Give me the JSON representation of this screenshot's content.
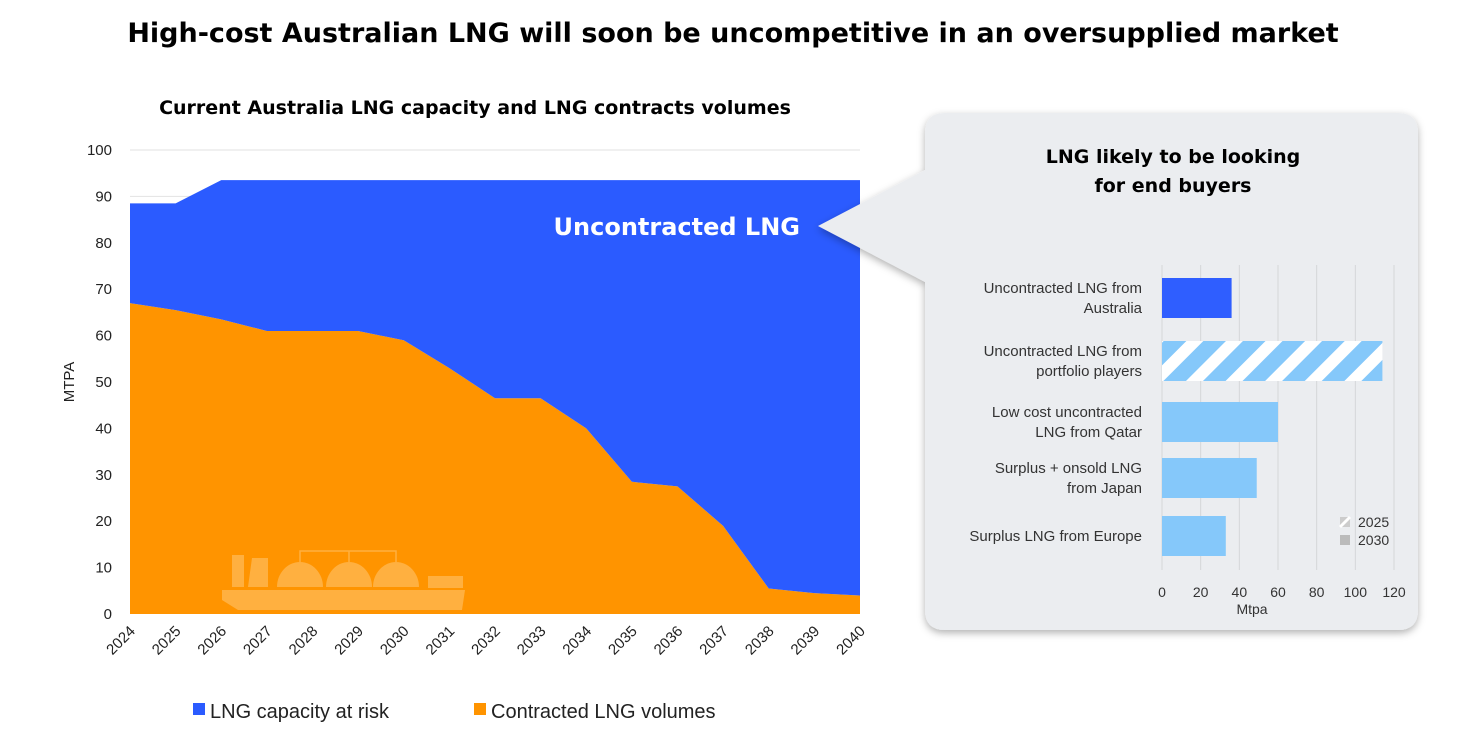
{
  "title": "High-cost Australian LNG will soon be uncompetitive in an oversupplied market",
  "chart_data": [
    {
      "type": "area",
      "stacked": true,
      "title": "Current Australia LNG capacity and LNG contracts volumes",
      "ylabel": "MTPA",
      "xlabel": "",
      "ylim": [
        0,
        100
      ],
      "yticks": [
        0,
        10,
        20,
        30,
        40,
        50,
        60,
        70,
        80,
        90,
        100
      ],
      "grid": true,
      "legend_position": "bottom",
      "categories": [
        "2024",
        "2025",
        "2026",
        "2027",
        "2028",
        "2029",
        "2030",
        "2031",
        "2032",
        "2033",
        "2034",
        "2035",
        "2036",
        "2037",
        "2038",
        "2039",
        "2040"
      ],
      "series": [
        {
          "name": "Contracted LNG volumes",
          "color": "#FF9400",
          "values": [
            67,
            65.5,
            63.5,
            61,
            61,
            61,
            59,
            53,
            46.5,
            46.5,
            40,
            28.5,
            27.5,
            19,
            5.5,
            4.5,
            4
          ]
        },
        {
          "name": "LNG capacity at risk",
          "color": "#2B5BFF",
          "values": [
            21.5,
            23,
            30,
            32.5,
            32.5,
            32.5,
            34.5,
            40.5,
            47,
            47,
            53.5,
            65,
            66,
            74.5,
            88,
            89,
            89.5
          ]
        }
      ],
      "annotation": "Uncontracted LNG"
    },
    {
      "type": "bar",
      "orientation": "horizontal",
      "title": "LNG likely to be looking for end buyers",
      "xlabel": "Mtpa",
      "xlim": [
        0,
        120
      ],
      "xticks": [
        0,
        20,
        40,
        60,
        80,
        100,
        120
      ],
      "grid": true,
      "legend_position": "bottom-right",
      "legend": [
        {
          "name": "2025",
          "pattern": "hatched"
        },
        {
          "name": "2030",
          "pattern": "solid"
        }
      ],
      "categories": [
        [
          "Uncontracted LNG from",
          "Australia"
        ],
        [
          "Uncontracted LNG from",
          "portfolio players"
        ],
        [
          "Low cost uncontracted",
          "LNG from Qatar"
        ],
        [
          "Surplus + onsold LNG",
          "from Japan"
        ],
        [
          "Surplus LNG from Europe"
        ]
      ],
      "values": [
        36,
        114,
        60,
        49,
        33
      ],
      "colors": [
        "#2F5EFF",
        "hatched",
        "#85C8FA",
        "#85C8FA",
        "#85C8FA"
      ]
    }
  ]
}
